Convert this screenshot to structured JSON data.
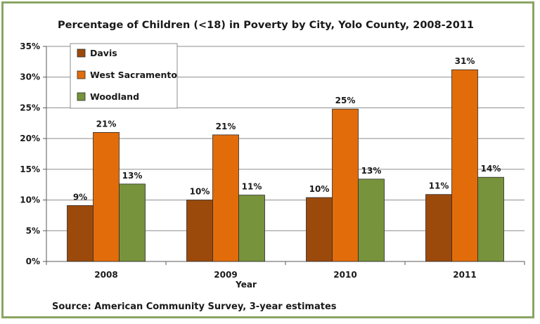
{
  "chart_data": {
    "type": "bar",
    "title": "Percentage of Children (<18) in Poverty by City, Yolo County, 2008-2011",
    "xlabel": "Year",
    "ylabel": "",
    "categories": [
      "2008",
      "2009",
      "2010",
      "2011"
    ],
    "series": [
      {
        "name": "Davis",
        "color": "#9c4a0c",
        "values": [
          9.1,
          10.0,
          10.4,
          10.9
        ],
        "labels": [
          "9%",
          "10%",
          "10%",
          "11%"
        ]
      },
      {
        "name": "West Sacramento",
        "color": "#e36c0a",
        "values": [
          21.0,
          20.6,
          24.8,
          31.2
        ],
        "labels": [
          "21%",
          "21%",
          "25%",
          "31%"
        ]
      },
      {
        "name": "Woodland",
        "color": "#77933c",
        "values": [
          12.6,
          10.8,
          13.4,
          13.7
        ],
        "labels": [
          "13%",
          "11%",
          "13%",
          "14%"
        ]
      }
    ],
    "ylim": [
      0,
      35
    ],
    "yticks": [
      0,
      5,
      10,
      15,
      20,
      25,
      30,
      35
    ],
    "ytick_labels": [
      "0%",
      "5%",
      "10%",
      "15%",
      "20%",
      "25%",
      "30%",
      "35%"
    ],
    "grid": true,
    "legend_position": "top-left"
  },
  "source_note": "Source: American Community Survey, 3-year estimates"
}
